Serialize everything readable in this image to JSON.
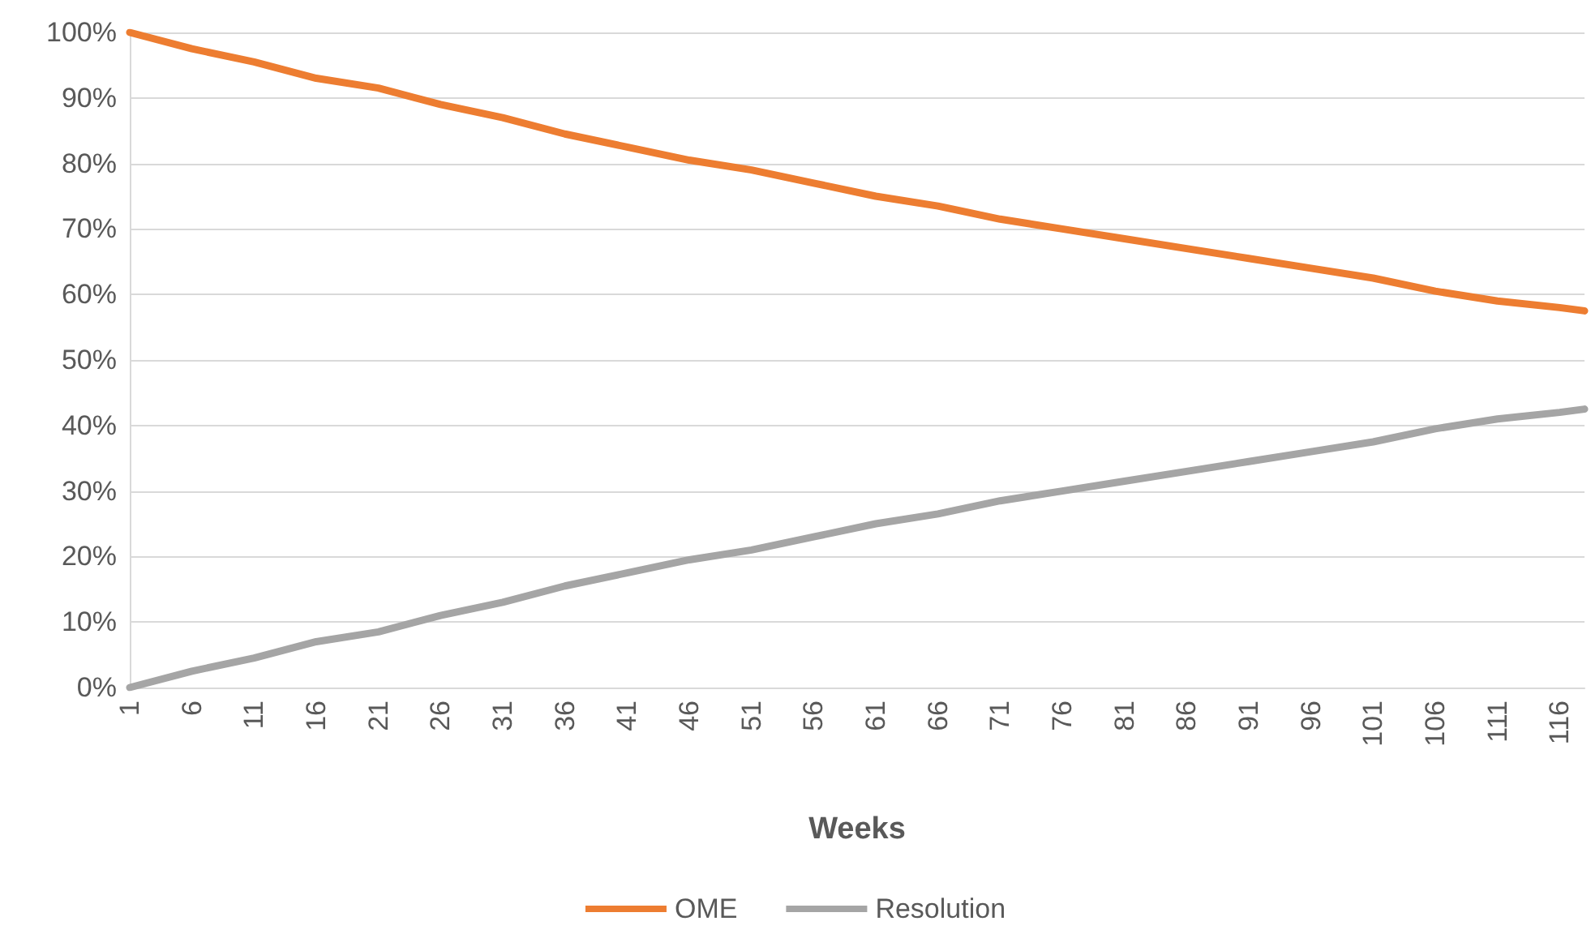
{
  "chart_data": {
    "type": "line",
    "xlabel": "Weeks",
    "x": [
      1,
      6,
      11,
      16,
      21,
      26,
      31,
      36,
      41,
      46,
      51,
      56,
      61,
      66,
      71,
      76,
      81,
      86,
      91,
      96,
      101,
      106,
      111,
      116,
      118
    ],
    "series": [
      {
        "name": "OME",
        "color": "#ed7d31",
        "values": [
          100,
          97.5,
          95.5,
          93,
          91.5,
          89,
          87,
          84.5,
          82.5,
          80.5,
          79,
          77,
          75,
          73.5,
          71.5,
          70,
          68.5,
          67,
          65.5,
          64,
          62.5,
          60.5,
          59,
          58,
          57.5
        ]
      },
      {
        "name": "Resolution",
        "color": "#a5a5a5",
        "values": [
          0,
          2.5,
          4.5,
          7,
          8.5,
          11,
          13,
          15.5,
          17.5,
          19.5,
          21,
          23,
          25,
          26.5,
          28.5,
          30,
          31.5,
          33,
          34.5,
          36,
          37.5,
          39.5,
          41,
          42,
          42.5
        ]
      }
    ],
    "xlim": [
      1,
      118
    ],
    "xticks": [
      1,
      6,
      11,
      16,
      21,
      26,
      31,
      36,
      41,
      46,
      51,
      56,
      61,
      66,
      71,
      76,
      81,
      86,
      91,
      96,
      101,
      106,
      111,
      116
    ],
    "ylim": [
      0,
      100
    ],
    "yticks": [
      {
        "value": 0,
        "label": "0%"
      },
      {
        "value": 10,
        "label": "10%"
      },
      {
        "value": 20,
        "label": "20%"
      },
      {
        "value": 30,
        "label": "30%"
      },
      {
        "value": 40,
        "label": "40%"
      },
      {
        "value": 50,
        "label": "50%"
      },
      {
        "value": 60,
        "label": "60%"
      },
      {
        "value": 70,
        "label": "70%"
      },
      {
        "value": 80,
        "label": "80%"
      },
      {
        "value": 90,
        "label": "90%"
      },
      {
        "value": 100,
        "label": "100%"
      }
    ],
    "grid": "y",
    "legend": "bottom",
    "marker": "none",
    "line_style": "solid"
  }
}
